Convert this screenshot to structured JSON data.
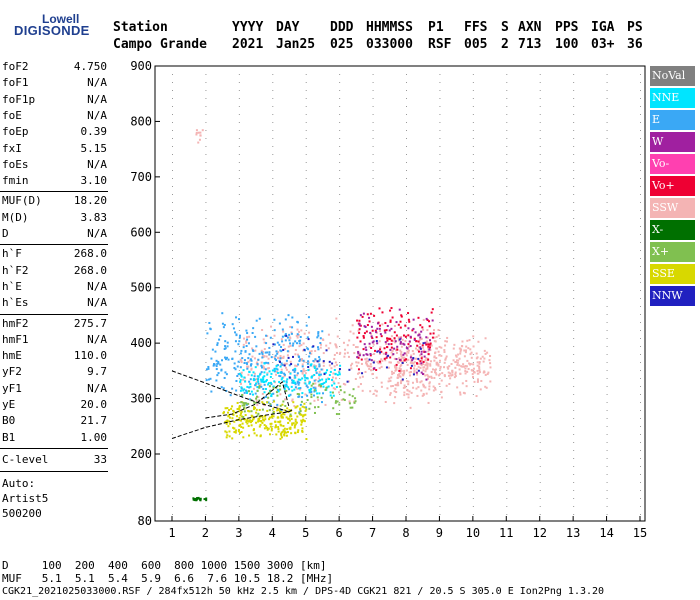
{
  "logo": {
    "line1": "Lowell",
    "line2": "DIGISONDE"
  },
  "header": {
    "row1": [
      "Station",
      "YYYY",
      "DAY",
      "DDD",
      "HHMMSS",
      "P1",
      "FFS",
      "S",
      "AXN",
      "PPS",
      "IGA",
      "PS"
    ],
    "row2": [
      "Campo Grande",
      "2021",
      "Jan25",
      "025",
      "033000",
      "RSF",
      "005",
      "2",
      "713",
      "100",
      "03+",
      "36"
    ]
  },
  "params_group1": [
    {
      "k": "foF2",
      "v": "4.750"
    },
    {
      "k": "foF1",
      "v": "N/A"
    },
    {
      "k": "foF1p",
      "v": "N/A"
    },
    {
      "k": "foE",
      "v": "N/A"
    },
    {
      "k": "foEp",
      "v": "0.39"
    },
    {
      "k": "fxI",
      "v": "5.15"
    },
    {
      "k": "foEs",
      "v": "N/A"
    },
    {
      "k": "fmin",
      "v": "3.10"
    }
  ],
  "params_group2": [
    {
      "k": "MUF(D)",
      "v": "18.20"
    },
    {
      "k": "M(D)",
      "v": "3.83"
    },
    {
      "k": "D",
      "v": "N/A"
    }
  ],
  "params_group3": [
    {
      "k": "h`F",
      "v": "268.0"
    },
    {
      "k": "h`F2",
      "v": "268.0"
    },
    {
      "k": "h`E",
      "v": "N/A"
    },
    {
      "k": "h`Es",
      "v": "N/A"
    }
  ],
  "params_group4": [
    {
      "k": "hmF2",
      "v": "275.7"
    },
    {
      "k": "hmF1",
      "v": "N/A"
    },
    {
      "k": "hmE",
      "v": "110.0"
    },
    {
      "k": "yF2",
      "v": "9.7"
    },
    {
      "k": "yF1",
      "v": "N/A"
    },
    {
      "k": "yE",
      "v": "20.0"
    },
    {
      "k": "B0",
      "v": "21.7"
    },
    {
      "k": "B1",
      "v": "1.00"
    }
  ],
  "clevel": {
    "k": "C-level",
    "v": "33"
  },
  "auto": {
    "line1": "Auto:",
    "line2": "Artist5",
    "line3": "500200"
  },
  "legend": [
    {
      "label": "NoVal",
      "color": "#808080"
    },
    {
      "label": "NNE",
      "color": "#00e5ff"
    },
    {
      "label": "E",
      "color": "#3aa8f5"
    },
    {
      "label": "W",
      "color": "#a020a0"
    },
    {
      "label": "Vo-",
      "color": "#ff40b0"
    },
    {
      "label": "Vo+",
      "color": "#ee0033"
    },
    {
      "label": "SSW",
      "color": "#f4b4b4"
    },
    {
      "label": "X-",
      "color": "#007000"
    },
    {
      "label": "X+",
      "color": "#80c050"
    },
    {
      "label": "SSE",
      "color": "#d8d800"
    },
    {
      "label": "NNW",
      "color": "#2020c0"
    }
  ],
  "footer": {
    "line1": "D     100  200  400  600  800 1000 1500 3000 [km]",
    "line2": "MUF   5.1  5.1  5.4  5.9  6.6  7.6 10.5 18.2 [MHz]",
    "line3": "CGK21_2021025033000.RSF / 284fx512h 50 kHz 2.5 km / DPS-4D CGK21 821 / 20.5 S 305.0 E Ion2Png 1.3.20"
  },
  "chart_data": {
    "type": "scatter",
    "xlabel": "",
    "ylabel": "",
    "xlim": [
      1,
      15
    ],
    "ylim": [
      80,
      900
    ],
    "xticks": [
      "1",
      "2",
      "3",
      "4",
      "5",
      "6",
      "7",
      "8",
      "9",
      "10",
      "11",
      "12",
      "13",
      "14",
      "15"
    ],
    "yticks": [
      "80",
      "200",
      "300",
      "400",
      "500",
      "600",
      "700",
      "800",
      "900"
    ],
    "clusters": [
      {
        "name": "SSW",
        "x": [
          3.0,
          9.0
        ],
        "y": [
          280,
          450
        ],
        "n": 450,
        "color": "#f4b4b4"
      },
      {
        "name": "SSW",
        "x": [
          7.5,
          10.5
        ],
        "y": [
          300,
          420
        ],
        "n": 300,
        "color": "#f4b4b4"
      },
      {
        "name": "E",
        "x": [
          2.0,
          5.5
        ],
        "y": [
          270,
          460
        ],
        "n": 320,
        "color": "#3aa8f5"
      },
      {
        "name": "SSE",
        "x": [
          2.5,
          5.0
        ],
        "y": [
          225,
          300
        ],
        "n": 260,
        "color": "#d8d800"
      },
      {
        "name": "NNE",
        "x": [
          3.0,
          6.0
        ],
        "y": [
          300,
          370
        ],
        "n": 150,
        "color": "#00e5ff"
      },
      {
        "name": "Vo+",
        "x": [
          6.5,
          8.8
        ],
        "y": [
          340,
          480
        ],
        "n": 120,
        "color": "#ee0033"
      },
      {
        "name": "W",
        "x": [
          6.5,
          8.8
        ],
        "y": [
          330,
          470
        ],
        "n": 90,
        "color": "#a020a0"
      },
      {
        "name": "X+",
        "x": [
          3.0,
          6.5
        ],
        "y": [
          260,
          340
        ],
        "n": 90,
        "color": "#80c050"
      },
      {
        "name": "NNW",
        "x": [
          4.0,
          8.5
        ],
        "y": [
          320,
          420
        ],
        "n": 40,
        "color": "#2020c0"
      },
      {
        "name": "SSW",
        "x": [
          1.7,
          1.9
        ],
        "y": [
          760,
          800
        ],
        "n": 10,
        "color": "#f4b4b4"
      },
      {
        "name": "X-",
        "x": [
          1.6,
          2.0
        ],
        "y": [
          118,
          124
        ],
        "n": 25,
        "color": "#007000"
      }
    ],
    "curves": [
      {
        "x": [
          1,
          2,
          3,
          4,
          4.5,
          4.6
        ],
        "y": [
          228,
          248,
          262,
          272,
          276,
          280
        ]
      },
      {
        "x": [
          1,
          2,
          3,
          3.6,
          4.2,
          4.5
        ],
        "y": [
          350,
          328,
          305,
          292,
          282,
          276
        ]
      },
      {
        "x": [
          2,
          2.8,
          3.5,
          4.3,
          4.5
        ],
        "y": [
          265,
          272,
          290,
          330,
          285
        ]
      }
    ]
  }
}
